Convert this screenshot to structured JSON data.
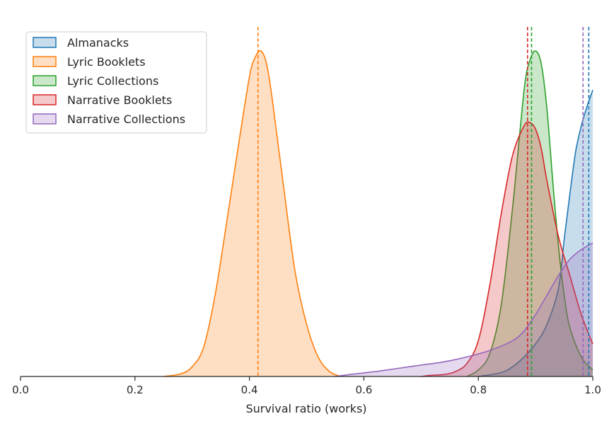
{
  "chart_data": {
    "type": "area",
    "title": "",
    "xlabel": "Survival ratio (works)",
    "ylabel": "",
    "xlim": [
      0.0,
      1.0
    ],
    "x_ticks": [
      {
        "value": 0.0,
        "label": "0.0"
      },
      {
        "value": 0.2,
        "label": "0.2"
      },
      {
        "value": 0.4,
        "label": "0.4"
      },
      {
        "value": 0.6,
        "label": "0.6"
      },
      {
        "value": 0.8,
        "label": "0.8"
      },
      {
        "value": 1.0,
        "label": "1.0"
      }
    ],
    "y_axis_visible": false,
    "legend_position": "top-left",
    "series": [
      {
        "name": "Almanacks",
        "color": "#1f77b4",
        "reference_line": 0.993,
        "density": [
          [
            0.8,
            0.0
          ],
          [
            0.84,
            0.012
          ],
          [
            0.86,
            0.03
          ],
          [
            0.88,
            0.06
          ],
          [
            0.9,
            0.1
          ],
          [
            0.92,
            0.16
          ],
          [
            0.94,
            0.27
          ],
          [
            0.95,
            0.42
          ],
          [
            0.96,
            0.56
          ],
          [
            0.97,
            0.69
          ],
          [
            0.98,
            0.77
          ],
          [
            0.99,
            0.83
          ],
          [
            1.0,
            0.88
          ]
        ]
      },
      {
        "name": "Lyric Booklets",
        "color": "#ff7f0e",
        "reference_line": 0.415,
        "density": [
          [
            0.25,
            0.0
          ],
          [
            0.28,
            0.008
          ],
          [
            0.3,
            0.03
          ],
          [
            0.32,
            0.09
          ],
          [
            0.34,
            0.25
          ],
          [
            0.36,
            0.47
          ],
          [
            0.38,
            0.7
          ],
          [
            0.4,
            0.92
          ],
          [
            0.41,
            0.98
          ],
          [
            0.42,
            1.0
          ],
          [
            0.43,
            0.96
          ],
          [
            0.44,
            0.85
          ],
          [
            0.46,
            0.58
          ],
          [
            0.48,
            0.32
          ],
          [
            0.5,
            0.16
          ],
          [
            0.52,
            0.06
          ],
          [
            0.54,
            0.015
          ],
          [
            0.56,
            0.0
          ]
        ]
      },
      {
        "name": "Lyric Collections",
        "color": "#2ca02c",
        "reference_line": 0.893,
        "density": [
          [
            0.78,
            0.0
          ],
          [
            0.8,
            0.02
          ],
          [
            0.82,
            0.07
          ],
          [
            0.84,
            0.22
          ],
          [
            0.86,
            0.52
          ],
          [
            0.88,
            0.88
          ],
          [
            0.89,
            0.97
          ],
          [
            0.9,
            1.0
          ],
          [
            0.91,
            0.96
          ],
          [
            0.92,
            0.82
          ],
          [
            0.93,
            0.6
          ],
          [
            0.94,
            0.4
          ],
          [
            0.95,
            0.25
          ],
          [
            0.96,
            0.15
          ],
          [
            0.98,
            0.06
          ],
          [
            1.0,
            0.02
          ]
        ]
      },
      {
        "name": "Narrative Booklets",
        "color": "#d62728",
        "reference_line": 0.886,
        "density": [
          [
            0.7,
            0.0
          ],
          [
            0.72,
            0.004
          ],
          [
            0.74,
            0.006
          ],
          [
            0.76,
            0.015
          ],
          [
            0.78,
            0.04
          ],
          [
            0.8,
            0.11
          ],
          [
            0.82,
            0.28
          ],
          [
            0.84,
            0.5
          ],
          [
            0.86,
            0.68
          ],
          [
            0.88,
            0.77
          ],
          [
            0.89,
            0.78
          ],
          [
            0.9,
            0.76
          ],
          [
            0.91,
            0.7
          ],
          [
            0.92,
            0.6
          ],
          [
            0.94,
            0.43
          ],
          [
            0.96,
            0.31
          ],
          [
            0.98,
            0.19
          ],
          [
            1.0,
            0.1
          ]
        ]
      },
      {
        "name": "Narrative Collections",
        "color": "#9467bd",
        "reference_line": 0.983,
        "density": [
          [
            0.55,
            0.0
          ],
          [
            0.58,
            0.007
          ],
          [
            0.62,
            0.015
          ],
          [
            0.66,
            0.025
          ],
          [
            0.7,
            0.035
          ],
          [
            0.74,
            0.045
          ],
          [
            0.78,
            0.06
          ],
          [
            0.82,
            0.08
          ],
          [
            0.86,
            0.11
          ],
          [
            0.88,
            0.14
          ],
          [
            0.9,
            0.19
          ],
          [
            0.92,
            0.25
          ],
          [
            0.94,
            0.31
          ],
          [
            0.96,
            0.36
          ],
          [
            0.98,
            0.39
          ],
          [
            1.0,
            0.41
          ]
        ]
      }
    ]
  }
}
